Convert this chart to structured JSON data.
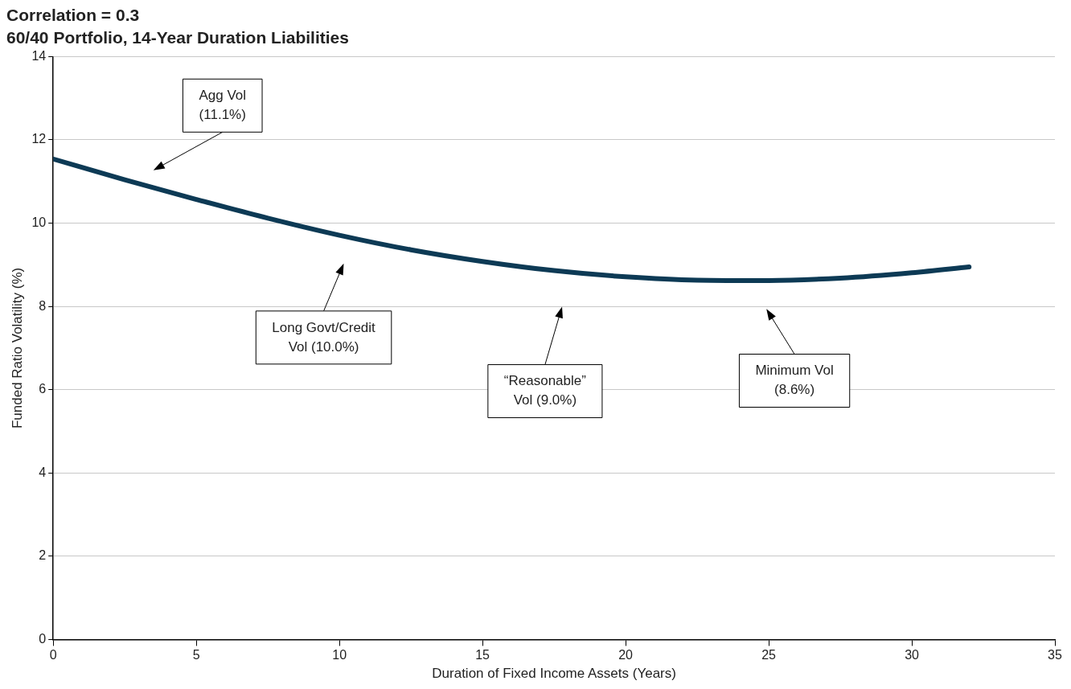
{
  "chart_data": {
    "type": "line",
    "title": "Correlation = 0.3",
    "subtitle": "60/40 Portfolio, 14-Year Duration Liabilities",
    "xlabel": "Duration of Fixed Income Assets (Years)",
    "ylabel": "Funded Ratio Volatility (%)",
    "x": [
      0,
      2.5,
      5,
      7.5,
      10,
      12.5,
      15,
      17.5,
      20,
      22.5,
      25,
      27.5,
      30,
      32
    ],
    "series": [
      {
        "color": "#0d3a55",
        "values": [
          11.54,
          11.04,
          10.57,
          10.12,
          9.71,
          9.36,
          9.08,
          8.86,
          8.71,
          8.63,
          8.62,
          8.68,
          8.81,
          8.95
        ]
      }
    ],
    "xlim": [
      0,
      35
    ],
    "xticks": [
      0,
      5,
      10,
      15,
      20,
      25,
      30,
      35
    ],
    "ylim": [
      0,
      14
    ],
    "yticks": [
      0,
      2,
      4,
      6,
      8,
      10,
      12,
      14
    ],
    "grid": "y",
    "legend": false,
    "marker": "none",
    "line_style": "solid",
    "annotations": [
      "Agg Vol\n(11.1%)",
      "Long Govt/Credit\nVol (10.0%)",
      "“Reasonable”\nVol (9.0%)",
      "Minimum Vol\n(8.6%)"
    ]
  }
}
